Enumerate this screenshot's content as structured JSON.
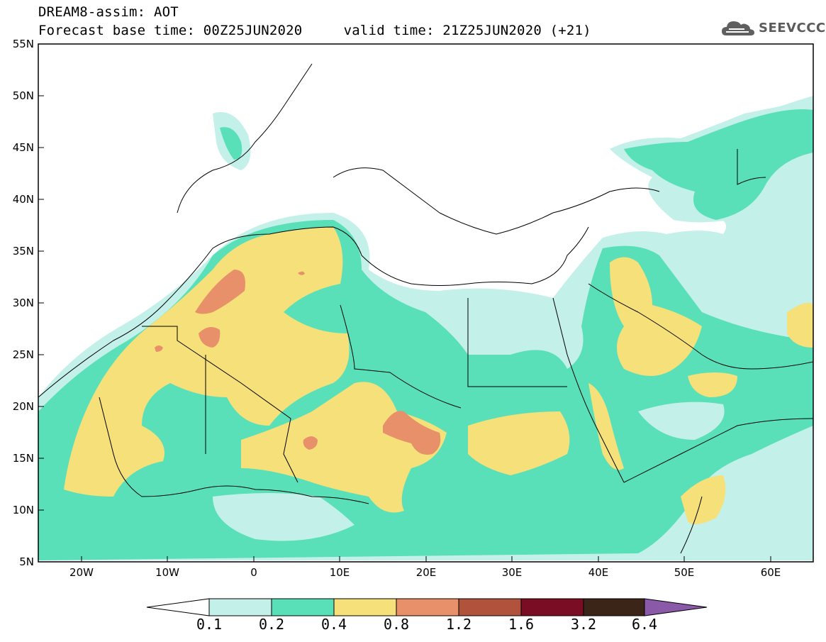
{
  "header": {
    "line1": "DREAM8-assim: AOT",
    "line2": "Forecast base time: 00Z25JUN2020     valid time: 21Z25JUN2020 (+21)"
  },
  "logo": {
    "text": "SEEVCCC",
    "icon": "cloud-icon"
  },
  "map": {
    "variable": "AOT",
    "lat_range": [
      5,
      55
    ],
    "lon_range": [
      -25,
      65
    ],
    "lat_ticks": [
      "55N",
      "50N",
      "45N",
      "40N",
      "35N",
      "30N",
      "25N",
      "20N",
      "15N",
      "10N",
      "5N"
    ],
    "lon_ticks": [
      "20W",
      "10W",
      "0",
      "10E",
      "20E",
      "30E",
      "40E",
      "50E",
      "60E"
    ]
  },
  "legend": {
    "levels": [
      "0.1",
      "0.2",
      "0.4",
      "0.8",
      "1.2",
      "1.6",
      "3.2",
      "6.4"
    ],
    "colors": [
      "#c4f0ea",
      "#5ae0b8",
      "#f5e07a",
      "#e8906a",
      "#b0523c",
      "#7a0c24",
      "#3b2418",
      "#8a5aa8"
    ]
  }
}
